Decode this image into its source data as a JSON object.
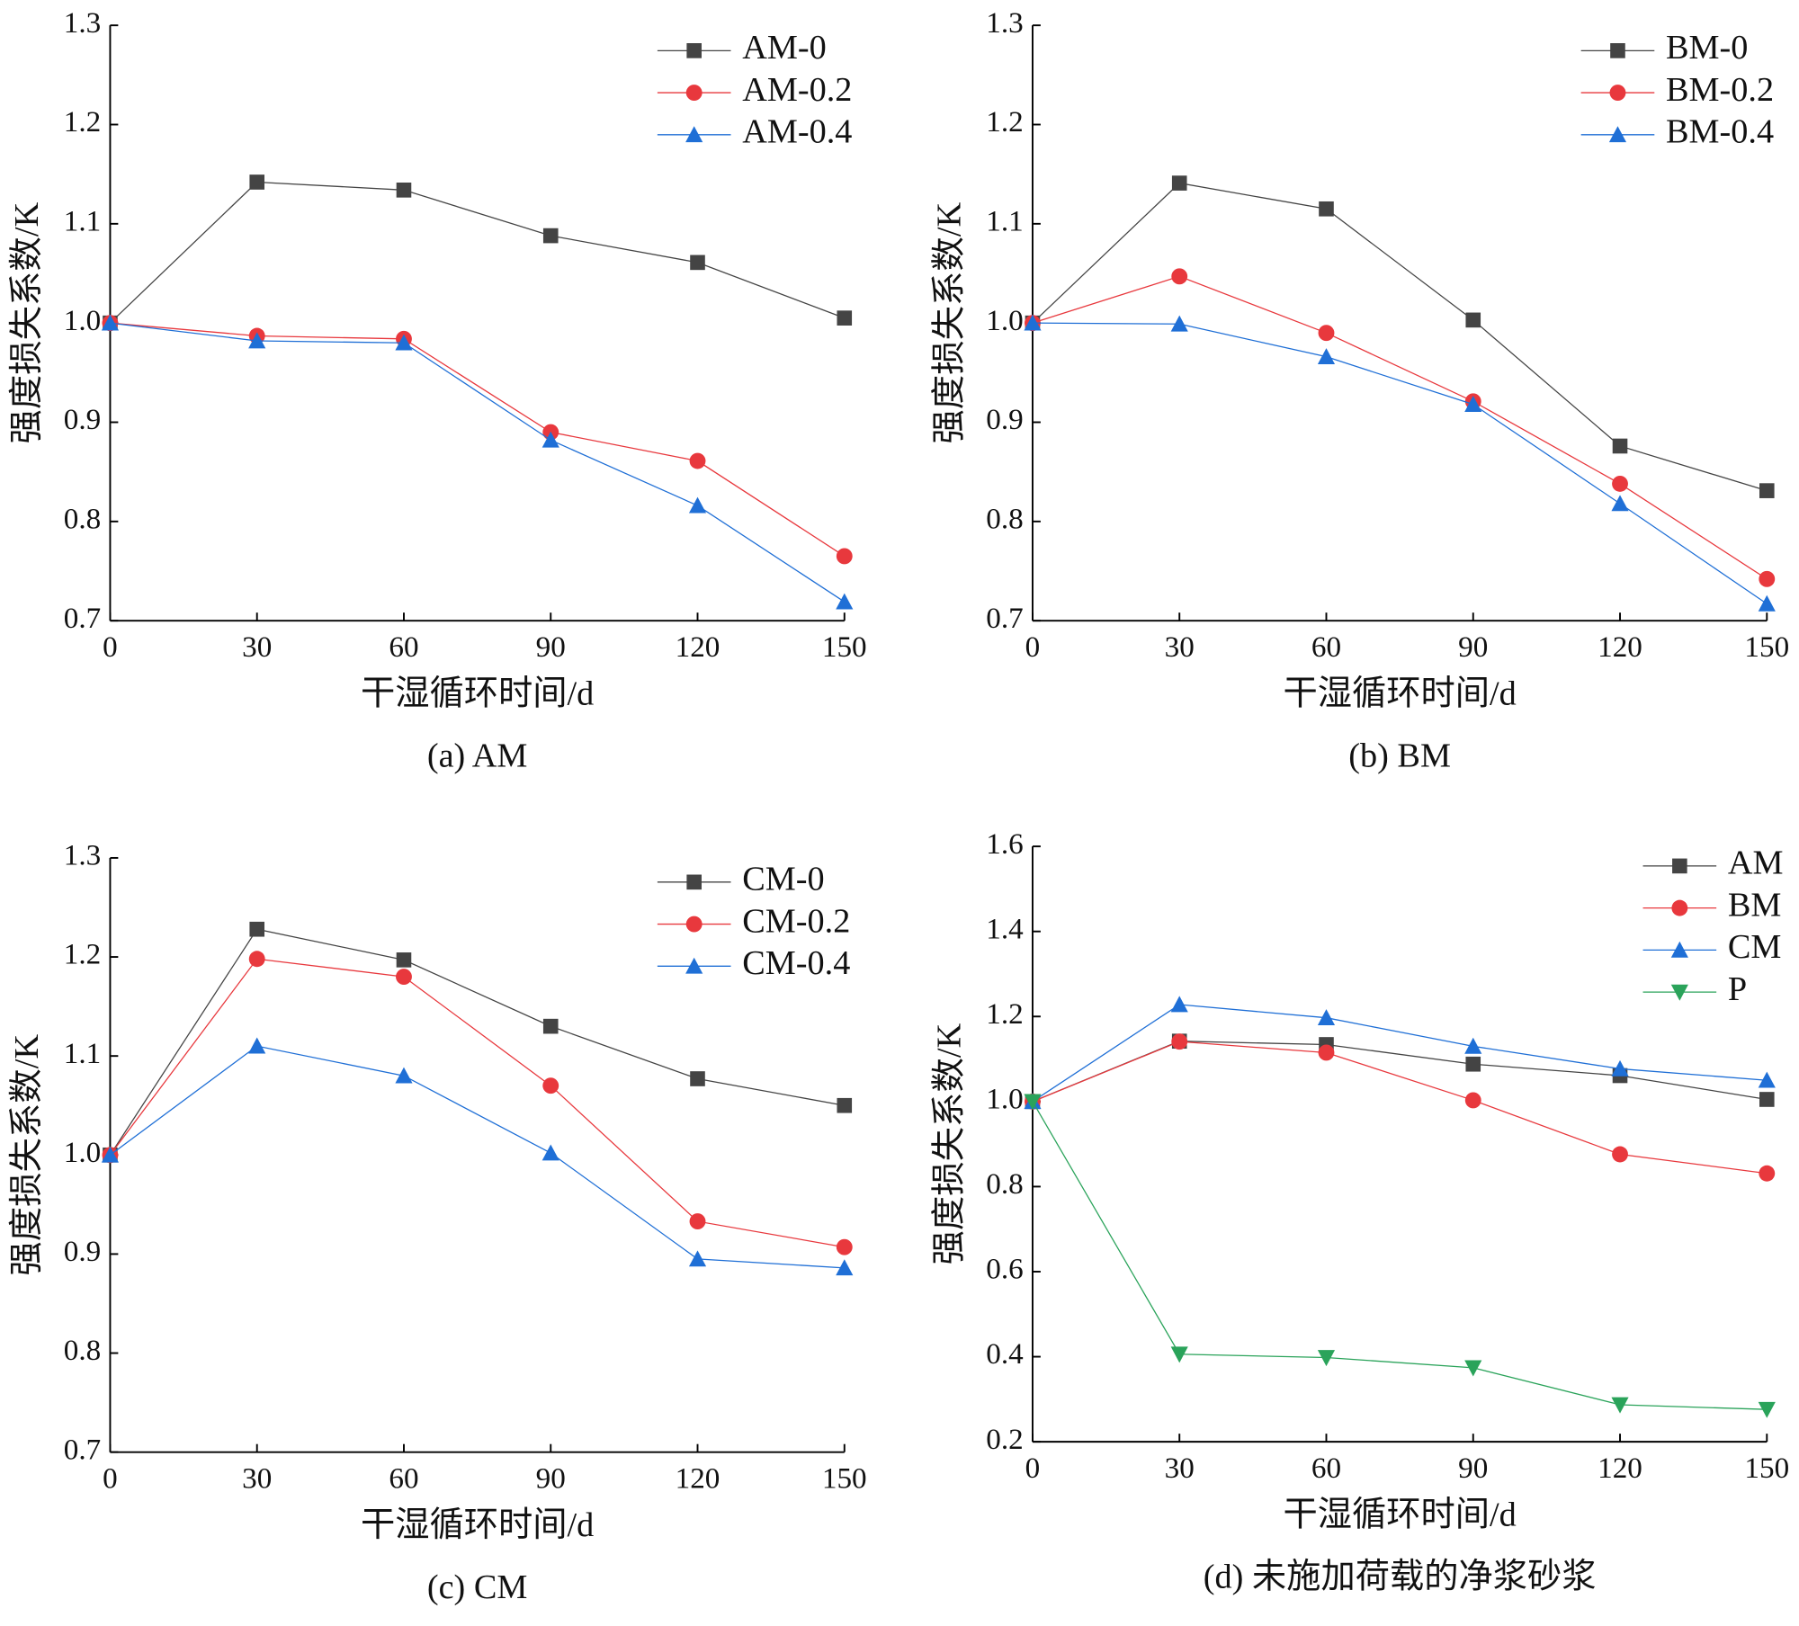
{
  "chart_data": [
    {
      "type": "line",
      "caption": "(a) AM",
      "xlabel": "干湿循环时间/d",
      "ylabel": "强度损失系数/K",
      "x": [
        0,
        30,
        60,
        90,
        120,
        150
      ],
      "xlim": [
        0,
        150
      ],
      "xticks": [
        0,
        30,
        60,
        90,
        120,
        150
      ],
      "ylim": [
        0.7,
        1.3
      ],
      "yticks": [
        0.7,
        0.8,
        0.9,
        {
          "value": 1.0,
          "label": "1.0"
        },
        1.1,
        1.2,
        1.3
      ],
      "legend": "upper right",
      "grid": false,
      "series": [
        {
          "name": "AM-0",
          "color": "#444444",
          "marker": "square",
          "values": [
            1.0,
            1.142,
            1.134,
            1.088,
            1.061,
            1.005
          ]
        },
        {
          "name": "AM-0.2",
          "color": "#e8383d",
          "marker": "circle",
          "values": [
            1.0,
            0.987,
            0.984,
            0.89,
            0.861,
            0.765
          ]
        },
        {
          "name": "AM-0.4",
          "color": "#1f6fd6",
          "marker": "triangle",
          "values": [
            1.0,
            0.982,
            0.98,
            0.882,
            0.816,
            0.719
          ]
        }
      ]
    },
    {
      "type": "line",
      "caption": "(b) BM",
      "xlabel": "干湿循环时间/d",
      "ylabel": "强度损失系数/K",
      "x": [
        0,
        30,
        60,
        90,
        120,
        150
      ],
      "xlim": [
        0,
        150
      ],
      "xticks": [
        0,
        30,
        60,
        90,
        120,
        150
      ],
      "ylim": [
        0.7,
        1.3
      ],
      "yticks": [
        0.7,
        0.8,
        0.9,
        {
          "value": 1.0,
          "label": "1.0"
        },
        1.1,
        1.2,
        1.3
      ],
      "legend": "upper right",
      "grid": false,
      "series": [
        {
          "name": "BM-0",
          "color": "#444444",
          "marker": "square",
          "values": [
            1.0,
            1.141,
            1.115,
            1.003,
            0.876,
            0.831
          ]
        },
        {
          "name": "BM-0.2",
          "color": "#e8383d",
          "marker": "circle",
          "values": [
            1.0,
            1.047,
            0.99,
            0.921,
            0.838,
            0.742
          ]
        },
        {
          "name": "BM-0.4",
          "color": "#1f6fd6",
          "marker": "triangle",
          "values": [
            1.0,
            0.999,
            0.966,
            0.918,
            0.818,
            0.717
          ]
        }
      ]
    },
    {
      "type": "line",
      "caption": "(c) CM",
      "xlabel": "干湿循环时间/d",
      "ylabel": "强度损失系数/K",
      "x": [
        0,
        30,
        60,
        90,
        120,
        150
      ],
      "xlim": [
        0,
        150
      ],
      "xticks": [
        0,
        30,
        60,
        90,
        120,
        150
      ],
      "ylim": [
        0.7,
        1.3
      ],
      "yticks": [
        0.7,
        0.8,
        0.9,
        {
          "value": 1.0,
          "label": "1.0"
        },
        1.1,
        1.2,
        1.3
      ],
      "legend": "upper right",
      "grid": false,
      "series": [
        {
          "name": "CM-0",
          "color": "#444444",
          "marker": "square",
          "values": [
            1.0,
            1.228,
            1.197,
            1.13,
            1.077,
            1.05
          ]
        },
        {
          "name": "CM-0.2",
          "color": "#e8383d",
          "marker": "circle",
          "values": [
            1.0,
            1.198,
            1.18,
            1.07,
            0.933,
            0.907
          ]
        },
        {
          "name": "CM-0.4",
          "color": "#1f6fd6",
          "marker": "triangle",
          "values": [
            1.0,
            1.11,
            1.08,
            1.002,
            0.895,
            0.886
          ]
        }
      ]
    },
    {
      "type": "line",
      "caption": "(d) 未施加荷载的净浆砂浆",
      "xlabel": "干湿循环时间/d",
      "ylabel": "强度损失系数/K",
      "x": [
        0,
        30,
        60,
        90,
        120,
        150
      ],
      "xlim": [
        0,
        150
      ],
      "xticks": [
        0,
        30,
        60,
        90,
        120,
        150
      ],
      "ylim": [
        0.2,
        1.6
      ],
      "yticks": [
        0.2,
        0.4,
        0.6,
        0.8,
        {
          "value": 1.0,
          "label": "1.0"
        },
        1.2,
        1.4,
        1.6
      ],
      "legend": "upper right",
      "grid": false,
      "series": [
        {
          "name": "AM",
          "color": "#444444",
          "marker": "square",
          "values": [
            1.0,
            1.142,
            1.134,
            1.088,
            1.061,
            1.005
          ]
        },
        {
          "name": "BM",
          "color": "#e8383d",
          "marker": "circle",
          "values": [
            1.0,
            1.141,
            1.115,
            1.003,
            0.876,
            0.831
          ]
        },
        {
          "name": "CM",
          "color": "#1f6fd6",
          "marker": "triangle",
          "values": [
            1.0,
            1.228,
            1.197,
            1.13,
            1.077,
            1.05
          ]
        },
        {
          "name": "P",
          "color": "#2aa35a",
          "marker": "triangle-down",
          "values": [
            1.0,
            0.406,
            0.398,
            0.374,
            0.287,
            0.276
          ]
        }
      ]
    }
  ]
}
